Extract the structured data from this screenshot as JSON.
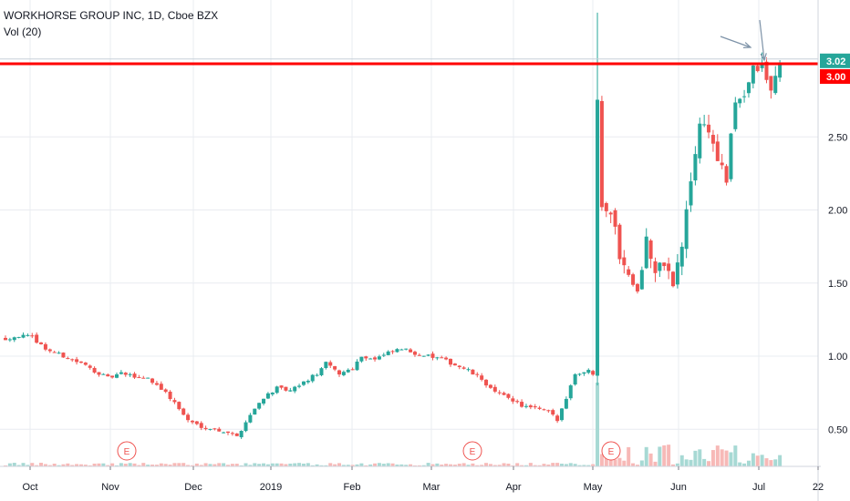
{
  "header": {
    "symbol_line": "WORKHORSE GROUP INC, 1D, Cboe BZX",
    "indicator_line": "Vol (20)"
  },
  "colors": {
    "up": "#26a69a",
    "down": "#ef5350",
    "vol_up": "#a7d9d4",
    "vol_down": "#f7b9b7",
    "level_line": "#ff0000",
    "grid": "#e9ecf1",
    "arrow": "#7e93a8",
    "badge_last": "#26a69a",
    "badge_level": "#ff0000"
  },
  "chart_data": {
    "type": "candlestick",
    "y_axis": {
      "ticks": [
        "0.50",
        "1.00",
        "1.50",
        "2.00",
        "2.50"
      ],
      "tick_values": [
        0.5,
        1.0,
        1.5,
        2.0,
        2.5
      ],
      "ylim": [
        0.24,
        3.45
      ]
    },
    "x_axis": {
      "tick_labels": [
        "Oct",
        "Nov",
        "Dec",
        "2019",
        "Feb",
        "Mar",
        "Apr",
        "May",
        "Jun",
        "Jul",
        "22"
      ]
    },
    "price_badges": {
      "last": "3.02",
      "level": "3.00"
    },
    "horizontal_line": {
      "value": 3.0
    },
    "earnings_markers": [
      {
        "label": "E",
        "month": "Nov"
      },
      {
        "label": "E",
        "month": "Mar"
      },
      {
        "label": "E",
        "month": "May"
      }
    ],
    "anchors": [
      [
        0,
        1.12
      ],
      [
        6,
        1.14
      ],
      [
        12,
        1.13
      ],
      [
        18,
        1.05
      ],
      [
        26,
        1.0
      ],
      [
        34,
        0.95
      ],
      [
        40,
        0.9
      ],
      [
        46,
        0.85
      ],
      [
        52,
        0.88
      ],
      [
        58,
        0.86
      ],
      [
        64,
        0.85
      ],
      [
        70,
        0.78
      ],
      [
        76,
        0.68
      ],
      [
        82,
        0.56
      ],
      [
        88,
        0.52
      ],
      [
        94,
        0.5
      ],
      [
        100,
        0.48
      ],
      [
        104,
        0.45
      ],
      [
        110,
        0.6
      ],
      [
        116,
        0.72
      ],
      [
        122,
        0.78
      ],
      [
        128,
        0.76
      ],
      [
        134,
        0.82
      ],
      [
        140,
        0.88
      ],
      [
        144,
        0.95
      ],
      [
        150,
        0.88
      ],
      [
        156,
        0.92
      ],
      [
        160,
        1.0
      ],
      [
        166,
        0.98
      ],
      [
        172,
        1.02
      ],
      [
        178,
        1.05
      ],
      [
        184,
        1.02
      ],
      [
        190,
        1.0
      ],
      [
        196,
        0.98
      ],
      [
        202,
        0.94
      ],
      [
        208,
        0.9
      ],
      [
        214,
        0.84
      ],
      [
        220,
        0.75
      ],
      [
        226,
        0.72
      ],
      [
        232,
        0.66
      ],
      [
        238,
        0.64
      ],
      [
        244,
        0.62
      ],
      [
        248,
        0.56
      ],
      [
        252,
        0.72
      ],
      [
        256,
        0.88
      ],
      [
        262,
        0.9
      ],
      [
        264,
        0.88
      ],
      [
        266,
        2.8
      ],
      [
        268,
        2.05
      ],
      [
        272,
        2.0
      ],
      [
        276,
        1.7
      ],
      [
        280,
        1.55
      ],
      [
        284,
        1.45
      ],
      [
        288,
        1.8
      ],
      [
        292,
        1.55
      ],
      [
        296,
        1.65
      ],
      [
        300,
        1.48
      ],
      [
        304,
        1.75
      ],
      [
        308,
        2.2
      ],
      [
        312,
        2.6
      ],
      [
        316,
        2.55
      ],
      [
        320,
        2.35
      ],
      [
        324,
        2.2
      ],
      [
        328,
        2.75
      ],
      [
        332,
        2.8
      ],
      [
        336,
        2.95
      ],
      [
        340,
        2.98
      ],
      [
        344,
        2.8
      ],
      [
        348,
        3.02
      ]
    ],
    "volume": {
      "label": "Vol (20)",
      "spikes": [
        {
          "x": 266,
          "value": 100
        }
      ]
    }
  }
}
